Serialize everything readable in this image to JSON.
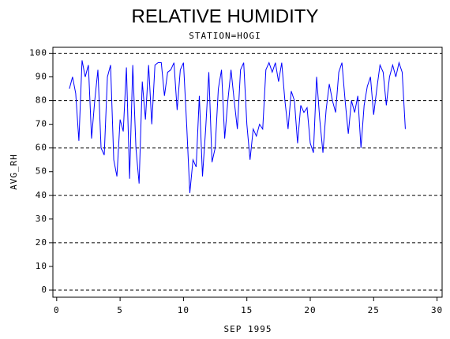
{
  "chart_data": {
    "type": "line",
    "title": "RELATIVE HUMIDITY",
    "subtitle": "STATION=HOGI",
    "x_label": "SEP 1995",
    "y_label": "AVG_RH",
    "x": [
      1.0,
      1.25,
      1.5,
      1.75,
      2.0,
      2.25,
      2.5,
      2.75,
      3.0,
      3.25,
      3.5,
      3.75,
      4.0,
      4.25,
      4.5,
      4.75,
      5.0,
      5.25,
      5.5,
      5.75,
      6.0,
      6.25,
      6.5,
      6.75,
      7.0,
      7.25,
      7.5,
      7.75,
      8.0,
      8.25,
      8.5,
      8.75,
      9.0,
      9.25,
      9.5,
      9.75,
      10.0,
      10.25,
      10.5,
      10.75,
      11.0,
      11.25,
      11.5,
      11.75,
      12.0,
      12.25,
      12.5,
      12.75,
      13.0,
      13.25,
      13.5,
      13.75,
      14.0,
      14.25,
      14.5,
      14.75,
      15.0,
      15.25,
      15.5,
      15.75,
      16.0,
      16.25,
      16.5,
      16.75,
      17.0,
      17.25,
      17.5,
      17.75,
      18.0,
      18.25,
      18.5,
      18.75,
      19.0,
      19.25,
      19.5,
      19.75,
      20.0,
      20.25,
      20.5,
      20.75,
      21.0,
      21.25,
      21.5,
      21.75,
      22.0,
      22.25,
      22.5,
      22.75,
      23.0,
      23.25,
      23.5,
      23.75,
      24.0,
      24.25,
      24.5,
      24.75,
      25.0,
      25.25,
      25.5,
      25.75,
      26.0,
      26.25,
      26.5,
      26.75,
      27.0,
      27.25,
      27.5
    ],
    "series": [
      {
        "name": "AVG_RH",
        "color": "#0000ff",
        "values": [
          85,
          90,
          83,
          63,
          97,
          90,
          95,
          64,
          80,
          93,
          60,
          57,
          90,
          95,
          55,
          48,
          72,
          67,
          94,
          47,
          95,
          60,
          45,
          88,
          72,
          95,
          70,
          95,
          96,
          96,
          82,
          92,
          93,
          96,
          76,
          93,
          96,
          70,
          41,
          55,
          52,
          82,
          48,
          68,
          92,
          54,
          60,
          85,
          93,
          64,
          80,
          93,
          80,
          68,
          93,
          96,
          70,
          55,
          68,
          65,
          70,
          68,
          93,
          96,
          92,
          96,
          88,
          96,
          80,
          68,
          84,
          80,
          62,
          78,
          75,
          77,
          62,
          58,
          90,
          72,
          58,
          76,
          87,
          80,
          75,
          92,
          96,
          80,
          66,
          80,
          75,
          82,
          60,
          78,
          86,
          90,
          74,
          85,
          95,
          92,
          78,
          90,
          95,
          90,
          96,
          92,
          68
        ]
      }
    ],
    "xlim": [
      -0.3,
      30.4
    ],
    "ylim": [
      -3,
      102.5
    ],
    "xticks": [
      0,
      5,
      10,
      15,
      20,
      25,
      30
    ],
    "yticks": [
      0,
      10,
      20,
      30,
      40,
      50,
      60,
      70,
      80,
      90,
      100
    ],
    "ygrid": [
      0,
      20,
      40,
      60,
      80,
      100
    ]
  }
}
